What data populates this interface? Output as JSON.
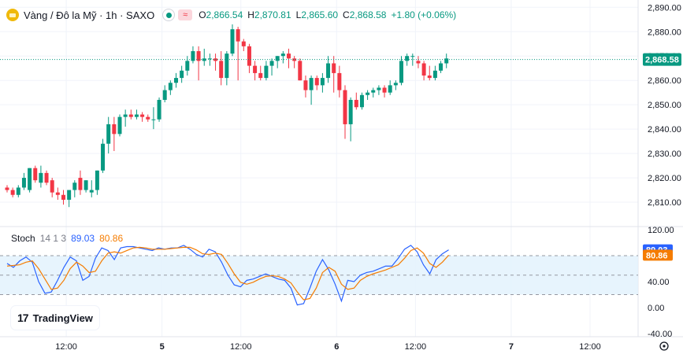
{
  "header": {
    "symbol_title": "Vàng / Đô la Mỹ · 1h · SAXO",
    "badge_wave": "≈",
    "open_label": "O",
    "open": "2,866.54",
    "high_label": "H",
    "high": "2,870.81",
    "low_label": "L",
    "low": "2,865.60",
    "close_label": "C",
    "close": "2,868.58",
    "change": "+1.80 (+0.06%)"
  },
  "stoch_legend": {
    "name": "Stoch",
    "params": "14 1 3",
    "k_value": "89.03",
    "d_value": "80.86"
  },
  "branding": {
    "logo_mark": "17",
    "logo_text": "TradingView"
  },
  "colors": {
    "up": "#089981",
    "down": "#f23645",
    "k_line": "#2962ff",
    "d_line": "#f57c00",
    "band": "#e3f2fd"
  },
  "chart_data": [
    {
      "type": "candlestick",
      "title": "Vàng / Đô la Mỹ · 1h · SAXO",
      "ylim": [
        2800,
        2893
      ],
      "yticks": [
        "2,810.00",
        "2,820.00",
        "2,830.00",
        "2,840.00",
        "2,850.00",
        "2,860.00",
        "2,870.00",
        "2,880.00",
        "2,890.00"
      ],
      "ytick_values": [
        2810,
        2820,
        2830,
        2840,
        2850,
        2860,
        2870,
        2880,
        2890
      ],
      "last_price_label": "2,868.58",
      "last_price": 2868.58,
      "xtick_labels": [
        "12:00",
        "5",
        "12:00",
        "6",
        "12:00",
        "7",
        "12:00"
      ],
      "xtick_index": [
        10.5,
        27.5,
        41.5,
        58.5,
        72.5,
        89.5,
        103.5
      ],
      "candles": [
        [
          2816,
          2817,
          2814,
          2815
        ],
        [
          2815,
          2816,
          2812,
          2813
        ],
        [
          2813,
          2817,
          2812,
          2816
        ],
        [
          2816,
          2822,
          2815,
          2820
        ],
        [
          2815,
          2824,
          2814,
          2824
        ],
        [
          2824,
          2825,
          2818,
          2819
        ],
        [
          2818,
          2825,
          2816,
          2822
        ],
        [
          2822,
          2823,
          2817,
          2818
        ],
        [
          2819,
          2820,
          2812,
          2814
        ],
        [
          2814,
          2816,
          2811,
          2813
        ],
        [
          2813,
          2815,
          2809,
          2811
        ],
        [
          2811,
          2815,
          2808,
          2815
        ],
        [
          2815,
          2819,
          2812,
          2818
        ],
        [
          2820,
          2823,
          2813,
          2815
        ],
        [
          2815,
          2819,
          2814,
          2819
        ],
        [
          2814,
          2819,
          2812,
          2815
        ],
        [
          2815,
          2823,
          2813,
          2823
        ],
        [
          2823,
          2836,
          2822,
          2834
        ],
        [
          2834,
          2845,
          2830,
          2842
        ],
        [
          2842,
          2845,
          2831,
          2838
        ],
        [
          2838,
          2846,
          2837,
          2845
        ],
        [
          2845,
          2848,
          2841,
          2846
        ],
        [
          2846,
          2848,
          2844,
          2845
        ],
        [
          2845,
          2848,
          2844,
          2846
        ],
        [
          2846,
          2847,
          2843,
          2845
        ],
        [
          2845,
          2846,
          2843,
          2844
        ],
        [
          2844,
          2849,
          2840,
          2844
        ],
        [
          2844,
          2853,
          2843,
          2852
        ],
        [
          2852,
          2858,
          2851,
          2856
        ],
        [
          2856,
          2860,
          2854,
          2859
        ],
        [
          2859,
          2863,
          2857,
          2861
        ],
        [
          2861,
          2866,
          2859,
          2864
        ],
        [
          2864,
          2870,
          2862,
          2868
        ],
        [
          2868,
          2874,
          2867,
          2872
        ],
        [
          2872,
          2874,
          2860,
          2868
        ],
        [
          2868,
          2873,
          2866,
          2869
        ],
        [
          2869,
          2871,
          2866,
          2869
        ],
        [
          2869,
          2871,
          2864,
          2868
        ],
        [
          2868,
          2872,
          2858,
          2861
        ],
        [
          2861,
          2872,
          2858,
          2871
        ],
        [
          2871,
          2883,
          2870,
          2881
        ],
        [
          2881,
          2882,
          2860,
          2876
        ],
        [
          2876,
          2877,
          2872,
          2874
        ],
        [
          2874,
          2875,
          2863,
          2866
        ],
        [
          2866,
          2868,
          2860,
          2863
        ],
        [
          2863,
          2866,
          2860,
          2861
        ],
        [
          2861,
          2868,
          2860,
          2866
        ],
        [
          2866,
          2869,
          2862,
          2868
        ],
        [
          2868,
          2870,
          2865,
          2870
        ],
        [
          2870,
          2872,
          2867,
          2871
        ],
        [
          2871,
          2873,
          2865,
          2869
        ],
        [
          2869,
          2870,
          2865,
          2868
        ],
        [
          2868,
          2869,
          2860,
          2860
        ],
        [
          2860,
          2862,
          2853,
          2856
        ],
        [
          2856,
          2862,
          2850,
          2861
        ],
        [
          2861,
          2862,
          2856,
          2858
        ],
        [
          2858,
          2863,
          2855,
          2861
        ],
        [
          2861,
          2870,
          2859,
          2867
        ],
        [
          2867,
          2870,
          2855,
          2863
        ],
        [
          2863,
          2866,
          2853,
          2856
        ],
        [
          2856,
          2858,
          2836,
          2842
        ],
        [
          2842,
          2853,
          2835,
          2852
        ],
        [
          2852,
          2855,
          2848,
          2849
        ],
        [
          2849,
          2855,
          2848,
          2854
        ],
        [
          2854,
          2856,
          2852,
          2855
        ],
        [
          2855,
          2857,
          2853,
          2856
        ],
        [
          2856,
          2858,
          2854,
          2857
        ],
        [
          2857,
          2858,
          2853,
          2855
        ],
        [
          2855,
          2860,
          2854,
          2858
        ],
        [
          2858,
          2860,
          2856,
          2859
        ],
        [
          2859,
          2870,
          2858,
          2868
        ],
        [
          2868,
          2871,
          2866,
          2870
        ],
        [
          2870,
          2871,
          2866,
          2870
        ],
        [
          2868,
          2870,
          2865,
          2867
        ],
        [
          2867,
          2868,
          2860,
          2862
        ],
        [
          2862,
          2866,
          2860,
          2861
        ],
        [
          2861,
          2866,
          2860,
          2864
        ],
        [
          2864,
          2868,
          2863,
          2867
        ],
        [
          2867,
          2871,
          2865,
          2869
        ]
      ]
    },
    {
      "type": "line",
      "title": "Stoch 14 1 3",
      "ylim": [
        -45,
        125
      ],
      "yticks": [
        "120.00",
        "80.00",
        "40.00",
        "0.00",
        "-40.00"
      ],
      "ytick_values": [
        120,
        80,
        40,
        0,
        -40
      ],
      "bands": [
        20,
        50,
        80
      ],
      "value_labels": [
        "89.03",
        "80.86"
      ],
      "series": [
        {
          "name": "K",
          "values": [
            68,
            62,
            72,
            78,
            70,
            40,
            22,
            24,
            42,
            62,
            78,
            72,
            42,
            48,
            76,
            92,
            88,
            74,
            92,
            94,
            94,
            92,
            90,
            88,
            92,
            90,
            92,
            92,
            96,
            90,
            82,
            78,
            90,
            86,
            70,
            50,
            35,
            32,
            42,
            44,
            48,
            52,
            48,
            44,
            42,
            30,
            4,
            6,
            30,
            56,
            74,
            58,
            36,
            10,
            42,
            40,
            50,
            54,
            56,
            60,
            64,
            64,
            76,
            90,
            96,
            86,
            66,
            52,
            74,
            83,
            89.03
          ]
        },
        {
          "name": "D",
          "values": [
            64,
            65,
            66,
            70,
            72,
            60,
            44,
            28,
            30,
            42,
            60,
            70,
            64,
            54,
            56,
            72,
            84,
            86,
            84,
            88,
            92,
            93,
            92,
            90,
            90,
            90,
            91,
            92,
            93,
            93,
            89,
            83,
            82,
            84,
            82,
            68,
            52,
            39,
            36,
            39,
            44,
            48,
            49,
            48,
            44,
            38,
            24,
            12,
            14,
            30,
            54,
            62,
            56,
            36,
            28,
            30,
            42,
            48,
            52,
            55,
            58,
            62,
            66,
            76,
            88,
            92,
            84,
            68,
            62,
            70,
            80.86
          ]
        }
      ]
    }
  ]
}
